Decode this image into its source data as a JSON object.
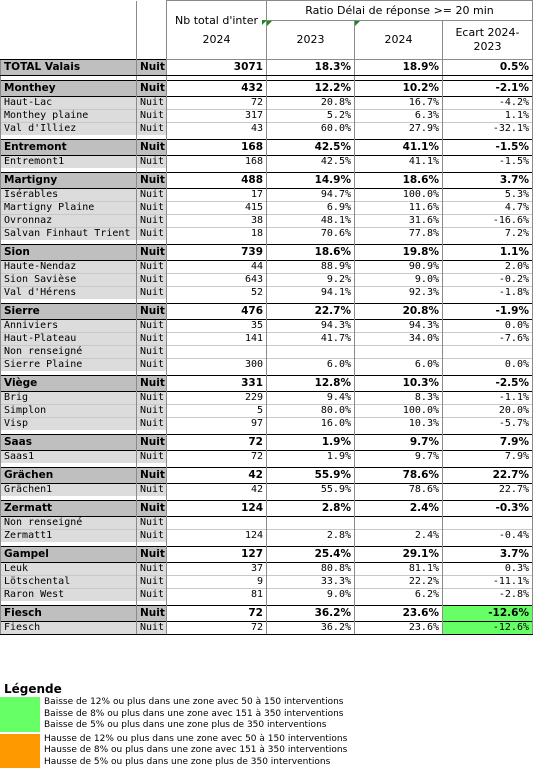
{
  "header": {
    "nb_total": "Nb total d'inter 2024",
    "ratio": "Ratio Délai de réponse >= 20 min",
    "y2023": "2023",
    "y2024": "2024",
    "ecart": "Ecart 2024-2023"
  },
  "total": {
    "name": "TOTAL Valais",
    "period": "Nuit",
    "nb": "3071",
    "r2023": "18.3%",
    "r2024": "18.9%",
    "ecart": "0.5%"
  },
  "groups": [
    {
      "name": "Monthey",
      "period": "Nuit",
      "nb": "432",
      "r2023": "12.2%",
      "r2024": "10.2%",
      "ecart": "-2.1%",
      "rows": [
        {
          "name": "Haut-Lac",
          "period": "Nuit",
          "nb": "72",
          "r2023": "20.8%",
          "r2024": "16.7%",
          "ecart": "-4.2%"
        },
        {
          "name": "Monthey plaine",
          "period": "Nuit",
          "nb": "317",
          "r2023": "5.2%",
          "r2024": "6.3%",
          "ecart": "1.1%"
        },
        {
          "name": "Val d'Illiez",
          "period": "Nuit",
          "nb": "43",
          "r2023": "60.0%",
          "r2024": "27.9%",
          "ecart": "-32.1%"
        }
      ]
    },
    {
      "name": "Entremont",
      "period": "Nuit",
      "nb": "168",
      "r2023": "42.5%",
      "r2024": "41.1%",
      "ecart": "-1.5%",
      "rows": [
        {
          "name": "Entremont1",
          "period": "Nuit",
          "nb": "168",
          "r2023": "42.5%",
          "r2024": "41.1%",
          "ecart": "-1.5%"
        }
      ]
    },
    {
      "name": "Martigny",
      "period": "Nuit",
      "nb": "488",
      "r2023": "14.9%",
      "r2024": "18.6%",
      "ecart": "3.7%",
      "rows": [
        {
          "name": "Isérables",
          "period": "Nuit",
          "nb": "17",
          "r2023": "94.7%",
          "r2024": "100.0%",
          "ecart": "5.3%"
        },
        {
          "name": "Martigny Plaine",
          "period": "Nuit",
          "nb": "415",
          "r2023": "6.9%",
          "r2024": "11.6%",
          "ecart": "4.7%"
        },
        {
          "name": "Ovronnaz",
          "period": "Nuit",
          "nb": "38",
          "r2023": "48.1%",
          "r2024": "31.6%",
          "ecart": "-16.6%"
        },
        {
          "name": "Salvan Finhaut Trient",
          "period": "Nuit",
          "nb": "18",
          "r2023": "70.6%",
          "r2024": "77.8%",
          "ecart": "7.2%"
        }
      ]
    },
    {
      "name": "Sion",
      "period": "Nuit",
      "nb": "739",
      "r2023": "18.6%",
      "r2024": "19.8%",
      "ecart": "1.1%",
      "rows": [
        {
          "name": "Haute-Nendaz",
          "period": "Nuit",
          "nb": "44",
          "r2023": "88.9%",
          "r2024": "90.9%",
          "ecart": "2.0%"
        },
        {
          "name": "Sion Savièse",
          "period": "Nuit",
          "nb": "643",
          "r2023": "9.2%",
          "r2024": "9.0%",
          "ecart": "-0.2%"
        },
        {
          "name": "Val d'Hérens",
          "period": "Nuit",
          "nb": "52",
          "r2023": "94.1%",
          "r2024": "92.3%",
          "ecart": "-1.8%"
        }
      ]
    },
    {
      "name": "Sierre",
      "period": "Nuit",
      "nb": "476",
      "r2023": "22.7%",
      "r2024": "20.8%",
      "ecart": "-1.9%",
      "rows": [
        {
          "name": "Anniviers",
          "period": "Nuit",
          "nb": "35",
          "r2023": "94.3%",
          "r2024": "94.3%",
          "ecart": "0.0%"
        },
        {
          "name": "Haut-Plateau",
          "period": "Nuit",
          "nb": "141",
          "r2023": "41.7%",
          "r2024": "34.0%",
          "ecart": "-7.6%"
        },
        {
          "name": "Non renseigné",
          "period": "Nuit",
          "nb": "",
          "r2023": "",
          "r2024": "",
          "ecart": ""
        },
        {
          "name": "Sierre Plaine",
          "period": "Nuit",
          "nb": "300",
          "r2023": "6.0%",
          "r2024": "6.0%",
          "ecart": "0.0%"
        }
      ]
    },
    {
      "name": "Viège",
      "period": "Nuit",
      "nb": "331",
      "r2023": "12.8%",
      "r2024": "10.3%",
      "ecart": "-2.5%",
      "rows": [
        {
          "name": "Brig",
          "period": "Nuit",
          "nb": "229",
          "r2023": "9.4%",
          "r2024": "8.3%",
          "ecart": "-1.1%"
        },
        {
          "name": "Simplon",
          "period": "Nuit",
          "nb": "5",
          "r2023": "80.0%",
          "r2024": "100.0%",
          "ecart": "20.0%"
        },
        {
          "name": "Visp",
          "period": "Nuit",
          "nb": "97",
          "r2023": "16.0%",
          "r2024": "10.3%",
          "ecart": "-5.7%"
        }
      ]
    },
    {
      "name": "Saas",
      "period": "Nuit",
      "nb": "72",
      "r2023": "1.9%",
      "r2024": "9.7%",
      "ecart": "7.9%",
      "rows": [
        {
          "name": "Saas1",
          "period": "Nuit",
          "nb": "72",
          "r2023": "1.9%",
          "r2024": "9.7%",
          "ecart": "7.9%"
        }
      ]
    },
    {
      "name": "Grächen",
      "period": "Nuit",
      "nb": "42",
      "r2023": "55.9%",
      "r2024": "78.6%",
      "ecart": "22.7%",
      "rows": [
        {
          "name": "Grächen1",
          "period": "Nuit",
          "nb": "42",
          "r2023": "55.9%",
          "r2024": "78.6%",
          "ecart": "22.7%"
        }
      ]
    },
    {
      "name": "Zermatt",
      "period": "Nuit",
      "nb": "124",
      "r2023": "2.8%",
      "r2024": "2.4%",
      "ecart": "-0.3%",
      "rows": [
        {
          "name": "Non renseigné",
          "period": "Nuit",
          "nb": "",
          "r2023": "",
          "r2024": "",
          "ecart": ""
        },
        {
          "name": "Zermatt1",
          "period": "Nuit",
          "nb": "124",
          "r2023": "2.8%",
          "r2024": "2.4%",
          "ecart": "-0.4%"
        }
      ]
    },
    {
      "name": "Gampel",
      "period": "Nuit",
      "nb": "127",
      "r2023": "25.4%",
      "r2024": "29.1%",
      "ecart": "3.7%",
      "rows": [
        {
          "name": "Leuk",
          "period": "Nuit",
          "nb": "37",
          "r2023": "80.8%",
          "r2024": "81.1%",
          "ecart": "0.3%"
        },
        {
          "name": "Lötschental",
          "period": "Nuit",
          "nb": "9",
          "r2023": "33.3%",
          "r2024": "22.2%",
          "ecart": "-11.1%"
        },
        {
          "name": "Raron West",
          "period": "Nuit",
          "nb": "81",
          "r2023": "9.0%",
          "r2024": "6.2%",
          "ecart": "-2.8%"
        }
      ]
    },
    {
      "name": "Fiesch",
      "period": "Nuit",
      "nb": "72",
      "r2023": "36.2%",
      "r2024": "23.6%",
      "ecart": "-12.6%",
      "highlight": "green",
      "rows": [
        {
          "name": "Fiesch",
          "period": "Nuit",
          "nb": "72",
          "r2023": "36.2%",
          "r2024": "23.6%",
          "ecart": "-12.6%",
          "highlight": "green"
        }
      ]
    }
  ],
  "legend": {
    "title": "Légende",
    "green": {
      "color": "#66ff66",
      "lines": [
        "Baisse de 12% ou plus dans une zone avec 50 à 150 interventions",
        "Baisse de 8% ou plus dans une zone avec 151 à 350 interventions",
        "Baisse de 5% ou plus dans une zone plus de 350 interventions"
      ]
    },
    "orange": {
      "color": "#ff9900",
      "lines": [
        "Hausse de 12% ou plus dans une zone avec 50 à 150 interventions",
        "Hausse de 8% ou plus dans une zone avec 151 à 350 interventions",
        "Hausse de 5% ou plus dans une zone plus de 350 interventions"
      ]
    }
  }
}
